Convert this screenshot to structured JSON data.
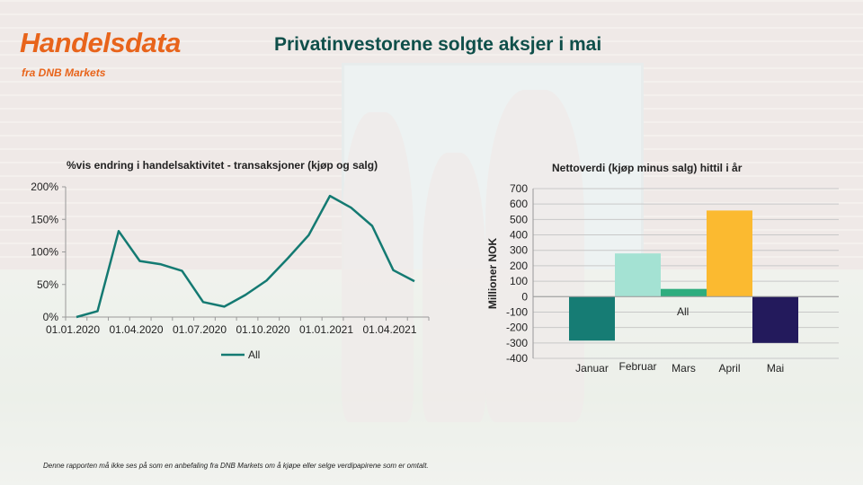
{
  "brand": {
    "title": "Handelsdata",
    "subtitle": "fra DNB Markets"
  },
  "page_title": "Privatinvestorene solgte aksjer i mai",
  "footer": "Denne rapporten må ikke ses på som en anbefaling fra DNB Markets om å kjøpe eller selge verdipapirene som er omtalt.",
  "colors": {
    "brand_orange": "#e8641b",
    "title_green": "#0f4f4a",
    "line": "#147a72"
  },
  "chart_data": [
    {
      "type": "line",
      "title": "%vis  endring i handelsaktivitet - transaksjoner (kjøp og salg)",
      "x": [
        "2020-01",
        "2020-02",
        "2020-03",
        "2020-04",
        "2020-05",
        "2020-06",
        "2020-07",
        "2020-08",
        "2020-09",
        "2020-10",
        "2020-11",
        "2020-12",
        "2021-01",
        "2021-02",
        "2021-03",
        "2021-04",
        "2021-05"
      ],
      "x_tick_labels": [
        "01.01.2020",
        "01.04.2020",
        "01.07.2020",
        "01.10.2020",
        "01.01.2021",
        "01.04.2021"
      ],
      "y_tick_labels": [
        "0%",
        "50%",
        "100%",
        "150%",
        "200%"
      ],
      "ylim": [
        0,
        200
      ],
      "series": [
        {
          "name": "All",
          "color": "#147a72",
          "values": [
            0,
            9,
            132,
            86,
            81,
            71,
            23,
            16,
            34,
            56,
            90,
            126,
            186,
            168,
            140,
            72,
            55
          ]
        }
      ],
      "legend": "bottom",
      "grid": false
    },
    {
      "type": "bar",
      "title": "Nettoverdi (kjøp minus salg) hittil i år",
      "ylabel": "Millioner NOK",
      "categories": [
        "Januar",
        "Februar",
        "Mars",
        "April",
        "Mai"
      ],
      "values": [
        -285,
        280,
        50,
        558,
        -300
      ],
      "colors": [
        "#167c74",
        "#a4e2d3",
        "#2ead7e",
        "#fbba30",
        "#231a5c"
      ],
      "y_tick_labels": [
        "700",
        "600",
        "500",
        "400",
        "300",
        "200",
        "100",
        "0",
        "-100",
        "-200",
        "-300",
        "-400"
      ],
      "ylim": [
        -400,
        700
      ],
      "series_label": "All",
      "grid": true
    }
  ]
}
